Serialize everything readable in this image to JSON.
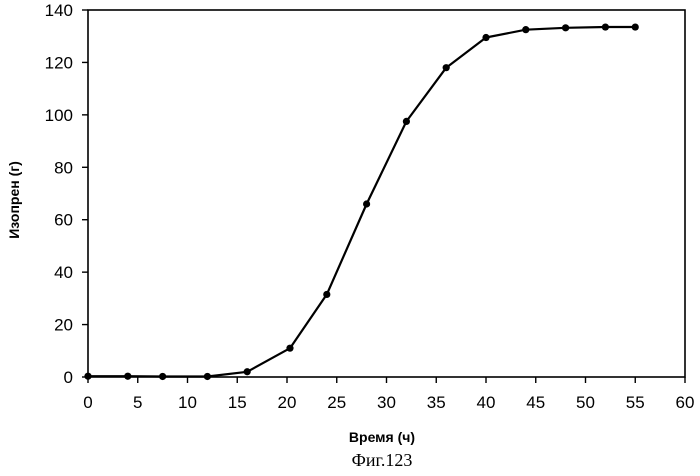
{
  "chart_data": {
    "type": "line",
    "title": "",
    "xlabel": "Время (ч)",
    "ylabel": "Изопрен (г)",
    "xlim": [
      0,
      60
    ],
    "ylim": [
      0,
      140
    ],
    "x_ticks": [
      0,
      5,
      10,
      15,
      20,
      25,
      30,
      35,
      40,
      45,
      50,
      55,
      60
    ],
    "y_ticks": [
      0,
      20,
      40,
      60,
      80,
      100,
      120,
      140
    ],
    "grid": false,
    "legend": "none",
    "series": [
      {
        "color": "#000000",
        "x": [
          0,
          4,
          7.5,
          12,
          16,
          20.3,
          24,
          28,
          32,
          36,
          40,
          44,
          48,
          52,
          55
        ],
        "y": [
          0.3,
          0.3,
          0.2,
          0.2,
          2,
          11,
          31.5,
          66,
          97.5,
          118,
          129.5,
          132.5,
          133.2,
          133.5,
          133.5
        ]
      }
    ]
  },
  "caption": "Фиг.123"
}
